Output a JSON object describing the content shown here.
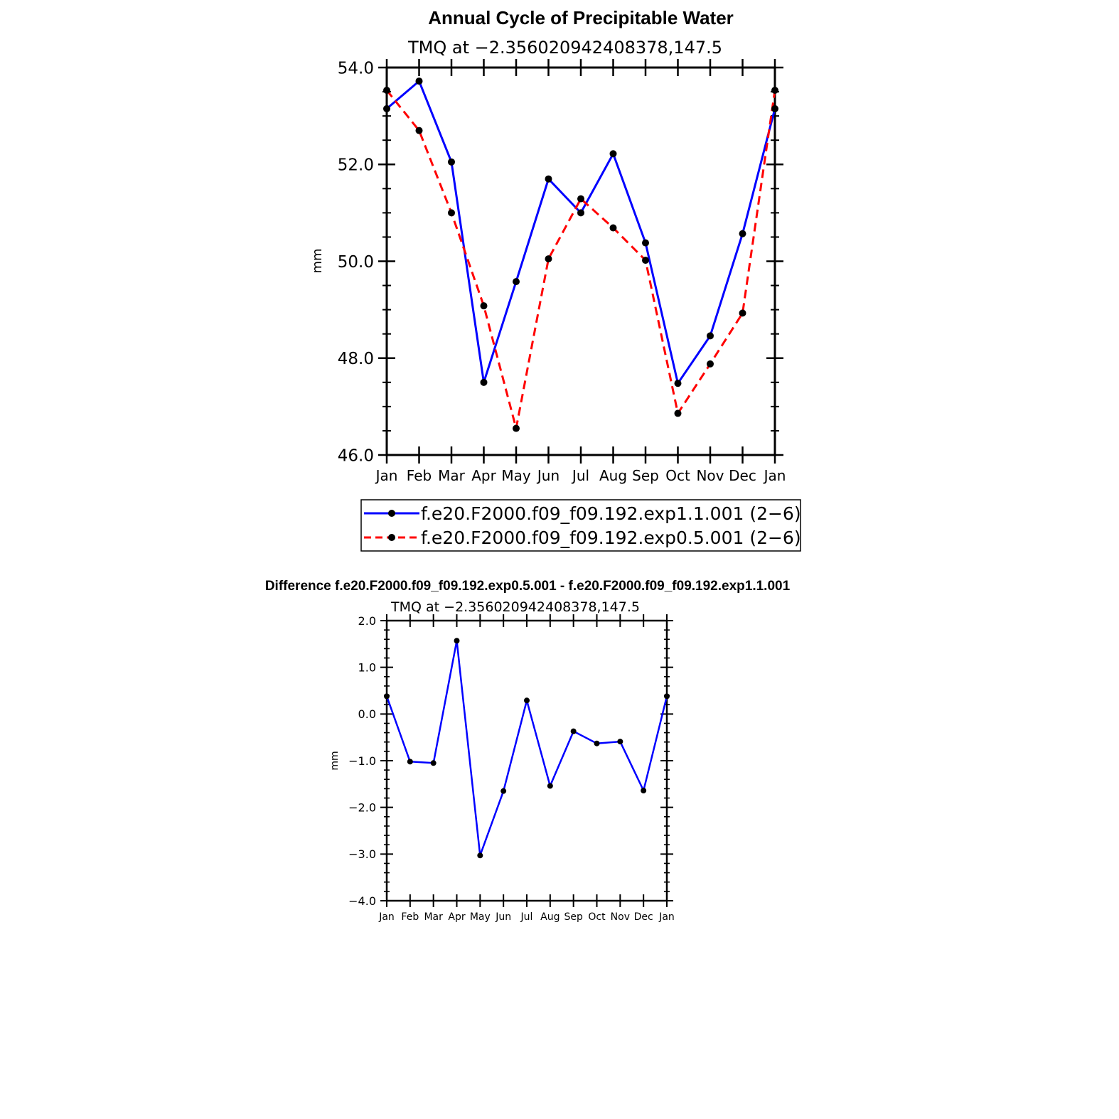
{
  "chart_data": [
    {
      "type": "line",
      "title": "Annual Cycle of Precipitable Water",
      "subtitle": "TMQ at −2.356020942408378,147.5",
      "ylabel": "mm",
      "xlabel": "",
      "ylim": [
        46.0,
        54.0
      ],
      "yticks": [
        "46.0",
        "48.0",
        "50.0",
        "52.0",
        "54.0"
      ],
      "categories": [
        "Jan",
        "Feb",
        "Mar",
        "Apr",
        "May",
        "Jun",
        "Jul",
        "Aug",
        "Sep",
        "Oct",
        "Nov",
        "Dec",
        "Jan"
      ],
      "legend_position": "bottom",
      "series": [
        {
          "name": "f.e20.F2000.f09_f09.192.exp1.1.001 (2−6)",
          "color": "#0000ff",
          "dash": "solid",
          "values": [
            53.15,
            53.72,
            52.05,
            47.5,
            49.58,
            51.7,
            51.0,
            52.22,
            50.38,
            47.48,
            48.46,
            50.57,
            53.15
          ]
        },
        {
          "name": "f.e20.F2000.f09_f09.192.exp0.5.001 (2−6)",
          "color": "#ff0000",
          "dash": "dashed",
          "values": [
            53.53,
            52.7,
            51.0,
            49.08,
            46.55,
            50.05,
            51.29,
            50.69,
            50.02,
            46.86,
            47.88,
            48.93,
            53.53
          ]
        }
      ]
    },
    {
      "type": "line",
      "title": "Difference f.e20.F2000.f09_f09.192.exp0.5.001 - f.e20.F2000.f09_f09.192.exp1.1.001",
      "subtitle": "TMQ at −2.356020942408378,147.5",
      "ylabel": "mm",
      "xlabel": "",
      "ylim": [
        -4.0,
        2.0
      ],
      "yticks": [
        "−4.0",
        "−3.0",
        "−2.0",
        "−1.0",
        "0.0",
        "1.0",
        "2.0"
      ],
      "categories": [
        "Jan",
        "Feb",
        "Mar",
        "Apr",
        "May",
        "Jun",
        "Jul",
        "Aug",
        "Sep",
        "Oct",
        "Nov",
        "Dec",
        "Jan"
      ],
      "series": [
        {
          "color": "#0000ff",
          "dash": "solid",
          "values": [
            0.38,
            -1.02,
            -1.05,
            1.57,
            -3.03,
            -1.65,
            0.29,
            -1.54,
            -0.37,
            -0.63,
            -0.59,
            -1.64,
            0.38
          ]
        }
      ]
    }
  ]
}
